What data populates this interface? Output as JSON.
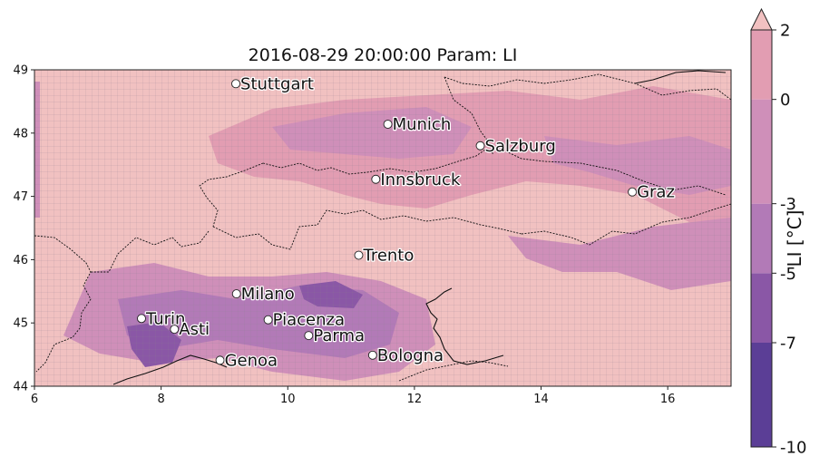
{
  "title": "2016-08-29 20:00:00 Param: LI",
  "map": {
    "lon_range": [
      6,
      17
    ],
    "lat_range": [
      44,
      49
    ],
    "x_ticks": [
      "6",
      "8",
      "10",
      "12",
      "14",
      "16"
    ],
    "y_ticks": [
      "44",
      "45",
      "46",
      "47",
      "48",
      "49"
    ],
    "cities": [
      {
        "name": "Stuttgart",
        "lon": 9.18,
        "lat": 48.78
      },
      {
        "name": "Munich",
        "lon": 11.58,
        "lat": 48.14
      },
      {
        "name": "Salzburg",
        "lon": 13.04,
        "lat": 47.8
      },
      {
        "name": "Innsbruck",
        "lon": 11.39,
        "lat": 47.27
      },
      {
        "name": "Graz",
        "lon": 15.44,
        "lat": 47.07
      },
      {
        "name": "Trento",
        "lon": 11.12,
        "lat": 46.07
      },
      {
        "name": "Milano",
        "lon": 9.19,
        "lat": 45.46
      },
      {
        "name": "Turin",
        "lon": 7.69,
        "lat": 45.07
      },
      {
        "name": "Asti",
        "lon": 8.21,
        "lat": 44.9
      },
      {
        "name": "Piacenza",
        "lon": 9.69,
        "lat": 45.05
      },
      {
        "name": "Parma",
        "lon": 10.33,
        "lat": 44.8
      },
      {
        "name": "Genoa",
        "lon": 8.93,
        "lat": 44.41
      },
      {
        "name": "Bologna",
        "lon": 11.34,
        "lat": 44.49
      }
    ]
  },
  "colorbar": {
    "label": "LI  [°C]",
    "levels": [
      "-10",
      "-7",
      "-5",
      "-3",
      "0",
      "2"
    ],
    "colors": [
      "#5b3e96",
      "#8a57a6",
      "#b27ab7",
      "#cf8fb9",
      "#e29db2",
      "#f1c1c1"
    ],
    "extend": "max"
  }
}
